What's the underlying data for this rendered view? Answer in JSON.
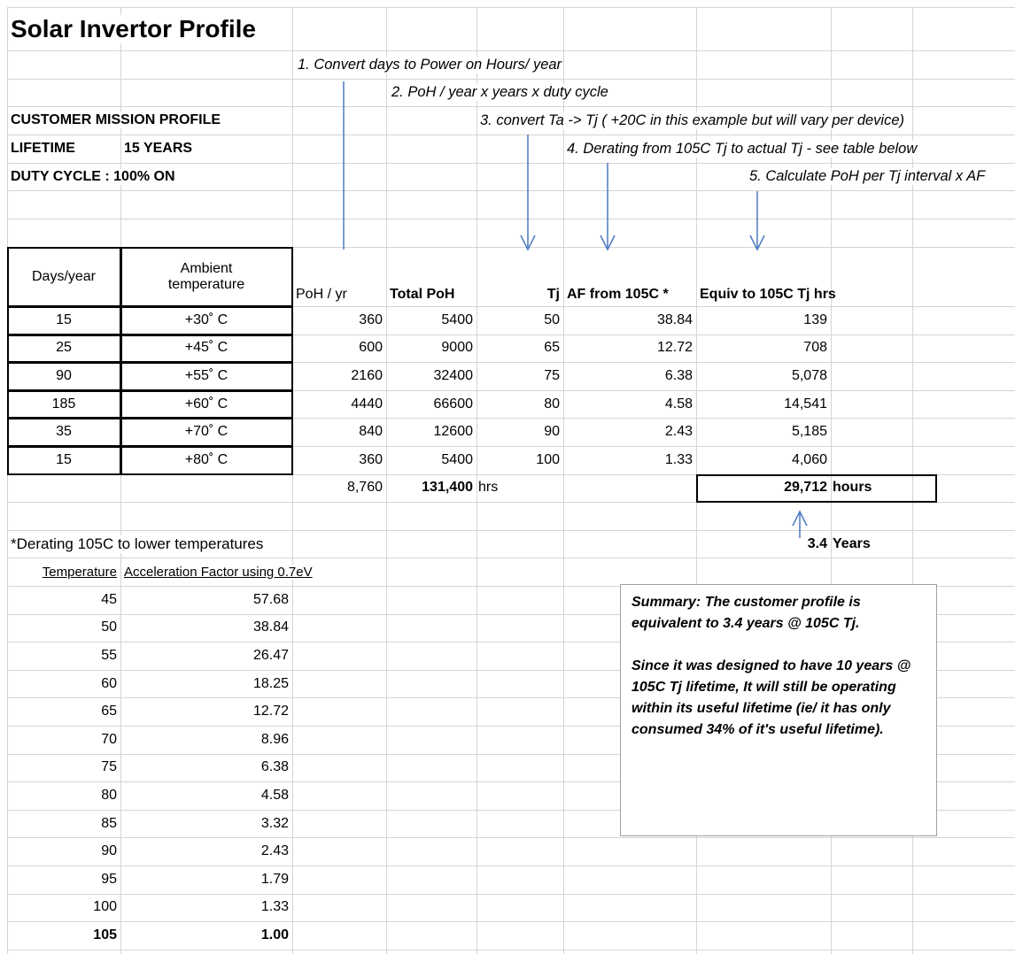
{
  "title": "Solar Invertor Profile",
  "steps": [
    "1. Convert days to Power on Hours/ year",
    "2. PoH / year x years x duty cycle",
    "3. convert Ta -> Tj ( +20C in this example but will vary per device)",
    "4. Derating from 105C Tj to actual Tj - see table below",
    "5. Calculate PoH per Tj interval x AF"
  ],
  "profile": {
    "heading": "CUSTOMER MISSION PROFILE",
    "lifetime_label": "LIFETIME",
    "lifetime_value": "15 YEARS",
    "duty": "DUTY CYCLE : 100% ON"
  },
  "table": {
    "headers": [
      "Days/year",
      "Ambient temperature",
      "PoH / yr",
      "Total PoH",
      "Tj",
      "AF from 105C *",
      "Equiv to 105C Tj hrs"
    ],
    "rows": [
      [
        "15",
        "+30˚ C",
        "360",
        "5400",
        "50",
        "38.84",
        "139"
      ],
      [
        "25",
        "+45˚ C",
        "600",
        "9000",
        "65",
        "12.72",
        "708"
      ],
      [
        "90",
        "+55˚ C",
        "2160",
        "32400",
        "75",
        "6.38",
        "5,078"
      ],
      [
        "185",
        "+60˚ C",
        "4440",
        "66600",
        "80",
        "4.58",
        "14,541"
      ],
      [
        "35",
        "+70˚ C",
        "840",
        "12600",
        "90",
        "2.43",
        "5,185"
      ],
      [
        "15",
        "+80˚ C",
        "360",
        "5400",
        "100",
        "1.33",
        "4,060"
      ]
    ]
  },
  "totals": {
    "poh_yr": "8,760",
    "total_poh": "131,400",
    "total_unit": "hrs",
    "equiv": "29,712",
    "equiv_unit": "hours"
  },
  "years": {
    "value": "3.4",
    "unit": "Years"
  },
  "derating": {
    "title": "*Derating 105C to lower temperatures",
    "headers": [
      "Temperature",
      "Acceleration Factor using 0.7eV"
    ],
    "rows": [
      [
        "45",
        "57.68"
      ],
      [
        "50",
        "38.84"
      ],
      [
        "55",
        "26.47"
      ],
      [
        "60",
        "18.25"
      ],
      [
        "65",
        "12.72"
      ],
      [
        "70",
        "8.96"
      ],
      [
        "75",
        "6.38"
      ],
      [
        "80",
        "4.58"
      ],
      [
        "85",
        "3.32"
      ],
      [
        "90",
        "2.43"
      ],
      [
        "95",
        "1.79"
      ],
      [
        "100",
        "1.33"
      ],
      [
        "105",
        "1.00"
      ]
    ]
  },
  "summary": [
    "Summary:  The customer profile is equivalent to 3.4 years @ 105C Tj.",
    "Since it was designed to have 10 years @ 105C Tj lifetime, It will still be operating within its useful lifetime  (ie/ it has only consumed 34% of it's useful lifetime)."
  ]
}
